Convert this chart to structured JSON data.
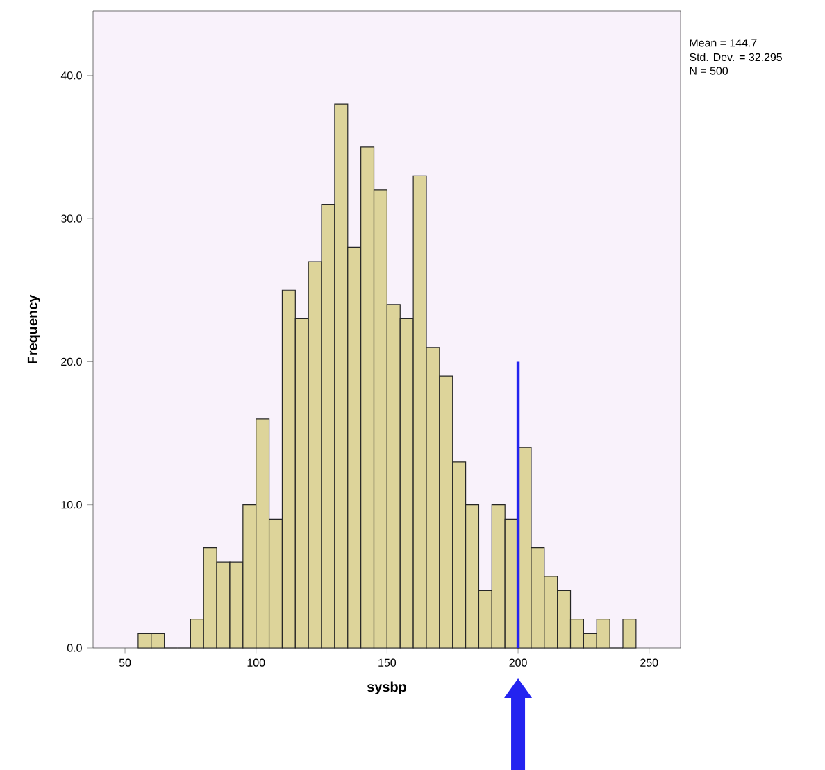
{
  "chart_data": {
    "type": "histogram",
    "xlabel": "sysbp",
    "ylabel": "Frequency",
    "bins": [
      55,
      60,
      65,
      70,
      75,
      80,
      85,
      90,
      95,
      100,
      105,
      110,
      115,
      120,
      125,
      130,
      135,
      140,
      145,
      150,
      155,
      160,
      165,
      170,
      175,
      180,
      185,
      190,
      195,
      200,
      205,
      210,
      215,
      220,
      225,
      230,
      235,
      240,
      245
    ],
    "values": [
      1,
      1,
      0,
      0,
      2,
      7,
      6,
      6,
      10,
      16,
      9,
      25,
      23,
      27,
      31,
      38,
      28,
      35,
      32,
      24,
      23,
      33,
      21,
      19,
      13,
      10,
      4,
      10,
      9,
      14,
      7,
      5,
      4,
      2,
      1,
      2,
      0,
      2
    ],
    "color": "#ddd49a",
    "series": [
      {
        "type": "line",
        "color": "#2323f0",
        "x": [
          200,
          200
        ],
        "values": [
          0,
          20
        ]
      }
    ],
    "xlim": [
      37.8,
      262
    ],
    "ylim": [
      0,
      44.5
    ],
    "xticks": [
      50,
      100,
      150,
      200,
      250
    ],
    "yticks": [
      {
        "value": 0,
        "label": "0.0"
      },
      {
        "value": 10,
        "label": "10.0"
      },
      {
        "value": 20,
        "label": "20.0"
      },
      {
        "value": 30,
        "label": "30.0"
      },
      {
        "value": 40,
        "label": "40.0"
      }
    ],
    "annotations": [
      "Mean = 144.7",
      "Std. Dev. = 32.295",
      "N = 500"
    ],
    "grid": false
  }
}
